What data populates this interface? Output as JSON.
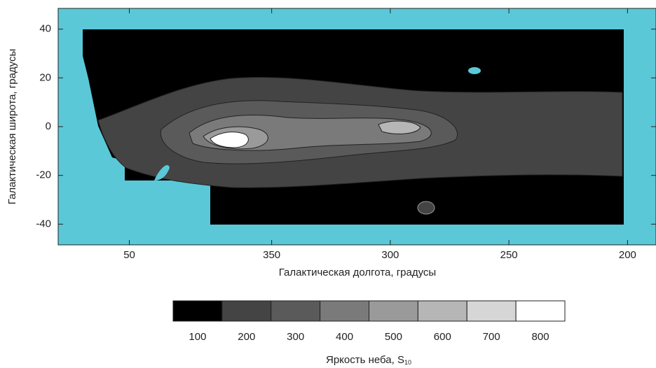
{
  "chart_data": {
    "type": "contour",
    "xlabel": "Галактическая долгота, градусы",
    "ylabel": "Галактическая широта, градусы",
    "xlim": [
      80,
      188
    ],
    "xticks": [
      50,
      350,
      300,
      250,
      200
    ],
    "ylim": [
      -48.5,
      48.5
    ],
    "yticks": [
      -40,
      -20,
      0,
      20,
      40
    ],
    "background_color": "#5bc8d8",
    "colorbar": {
      "label": "Яркость неба, S",
      "label_subscript": "10",
      "levels": [
        100,
        200,
        300,
        400,
        500,
        600,
        700,
        800
      ],
      "colors": [
        "#000000",
        "#444444",
        "#5a5a5a",
        "#7a7a7a",
        "#9a9a9a",
        "#b6b6b6",
        "#d6d6d6",
        "#ffffff"
      ]
    }
  }
}
